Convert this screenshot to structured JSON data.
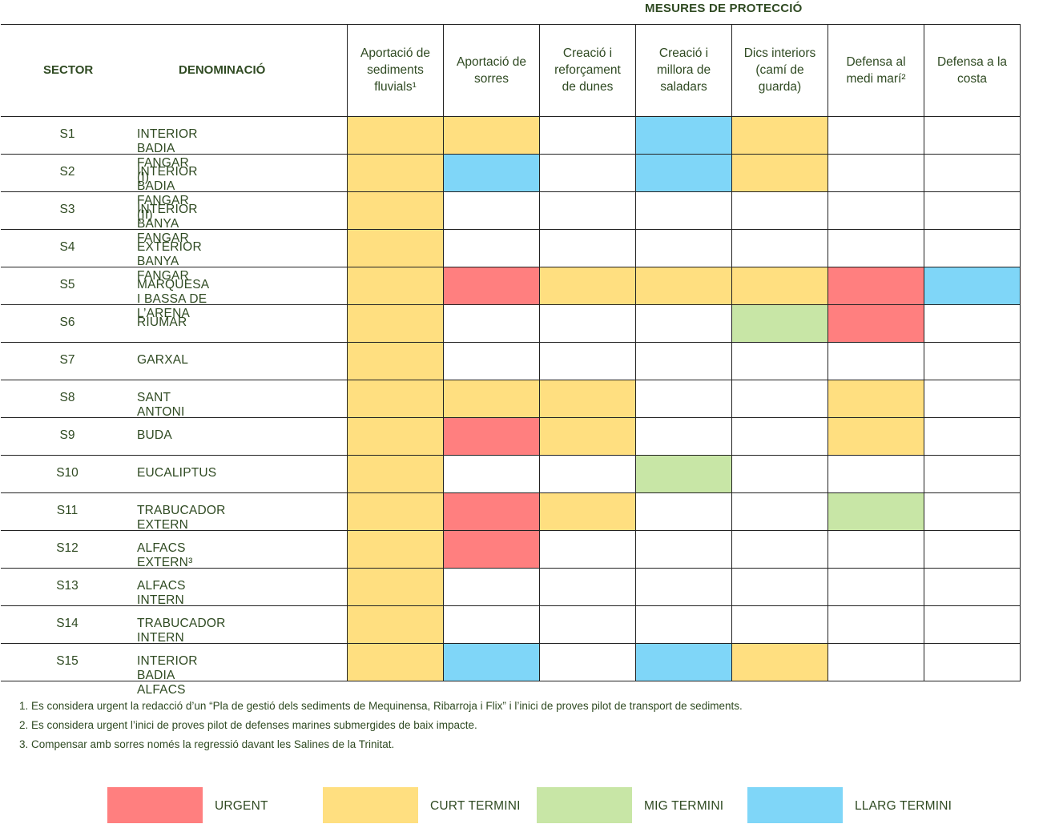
{
  "top_title": "MESURES DE PROTECCIÓ",
  "headers": {
    "sector": "SECTOR",
    "denomination": "DENOMINACIÓ",
    "measures": [
      "Aportació de\nsediments\nfluvials¹",
      "Aportació de\nsorres",
      "Creació i\nreforçament\nde dunes",
      "Creació i\nmillora de\nsaladars",
      "Dics interiors\n(camí de\nguarda)",
      "Defensa al\nmedi marí²",
      "Defensa a la\ncosta"
    ]
  },
  "colors": {
    "U": "#ff7f7f",
    "C": "#ffdf80",
    "M": "#c8e6a6",
    "L": "#7fd6f8",
    "text": "#2f4a22",
    "line": "#222222"
  },
  "rows": [
    {
      "sector": "S1",
      "name": "INTERIOR BADIA FANGAR (I)",
      "cells": [
        "C",
        "C",
        "",
        "L",
        "C",
        "",
        ""
      ]
    },
    {
      "sector": "S2",
      "name": "INTERIOR BADIA FANGAR (II)",
      "cells": [
        "C",
        "L",
        "",
        "L",
        "C",
        "",
        ""
      ]
    },
    {
      "sector": "S3",
      "name": "INTERIOR BANYA FANGAR",
      "cells": [
        "C",
        "",
        "",
        "",
        "",
        "",
        ""
      ]
    },
    {
      "sector": "S4",
      "name": "EXTERIOR BANYA FANGAR",
      "cells": [
        "C",
        "",
        "",
        "",
        "",
        "",
        ""
      ]
    },
    {
      "sector": "S5",
      "name": "MARQUESA I BASSA DE L’ARENA",
      "cells": [
        "C",
        "U",
        "C",
        "C",
        "C",
        "U",
        "L"
      ]
    },
    {
      "sector": "S6",
      "name": "RIUMAR",
      "cells": [
        "C",
        "",
        "",
        "",
        "M",
        "U",
        ""
      ]
    },
    {
      "sector": "S7",
      "name": "GARXAL",
      "cells": [
        "C",
        "",
        "",
        "",
        "",
        "",
        ""
      ]
    },
    {
      "sector": "S8",
      "name": "SANT ANTONI",
      "cells": [
        "C",
        "C",
        "C",
        "",
        "",
        "C",
        ""
      ]
    },
    {
      "sector": "S9",
      "name": "BUDA",
      "cells": [
        "C",
        "U",
        "C",
        "",
        "",
        "C",
        ""
      ]
    },
    {
      "sector": "S10",
      "name": "EUCALIPTUS",
      "cells": [
        "C",
        "",
        "",
        "M",
        "",
        "",
        ""
      ]
    },
    {
      "sector": "S11",
      "name": "TRABUCADOR EXTERN",
      "cells": [
        "C",
        "U",
        "C",
        "",
        "",
        "M",
        ""
      ]
    },
    {
      "sector": "S12",
      "name": "ALFACS EXTERN³",
      "cells": [
        "C",
        "U",
        "",
        "",
        "",
        "",
        ""
      ]
    },
    {
      "sector": "S13",
      "name": "ALFACS INTERN",
      "cells": [
        "C",
        "",
        "",
        "",
        "",
        "",
        ""
      ]
    },
    {
      "sector": "S14",
      "name": "TRABUCADOR INTERN",
      "cells": [
        "C",
        "",
        "",
        "",
        "",
        "",
        ""
      ]
    },
    {
      "sector": "S15",
      "name": "INTERIOR BADIA ALFACS",
      "cells": [
        "C",
        "L",
        "",
        "L",
        "C",
        "",
        ""
      ]
    }
  ],
  "notes": [
    "1. Es considera urgent la redacció d’un “Pla de gestió dels sediments de Mequinensa, Ribarroja i Flix” i l’inici de proves pilot de transport de sediments.",
    "2. Es considera urgent l’inici de proves pilot de defenses marines submergides de baix impacte.",
    "3. Compensar amb sorres només la regressió davant les Salines de la Trinitat."
  ],
  "legend": [
    {
      "key": "U",
      "label": "URGENT"
    },
    {
      "key": "C",
      "label": "CURT TERMINI"
    },
    {
      "key": "M",
      "label": "MIG TERMINI"
    },
    {
      "key": "L",
      "label": "LLARG TERMINI"
    }
  ]
}
